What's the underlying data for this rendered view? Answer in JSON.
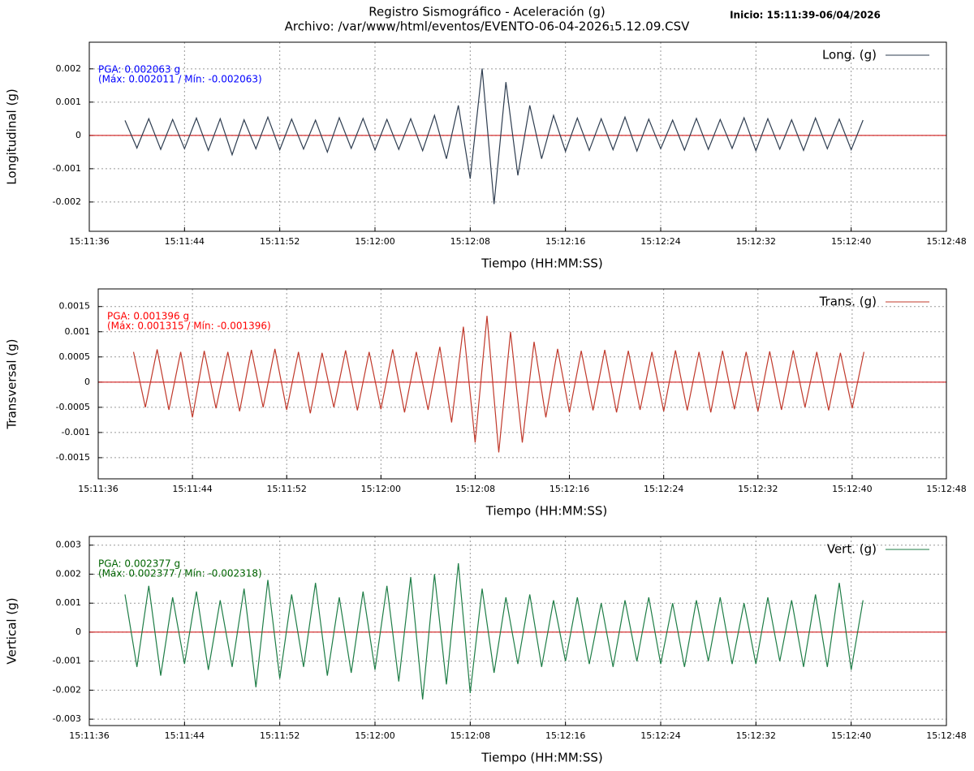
{
  "title": "Registro Sismográfico - Aceleración (g)",
  "subtitle": "Archivo: /var/www/html/eventos/EVENTO-06-04-2026₁5.12.09.CSV",
  "start_label": "Inicio: 15:11:39-06/04/2026",
  "chart_data": [
    {
      "type": "line",
      "ylabel": "Longitudinal (g)",
      "xlabel": "Tiempo (HH:MM:SS)",
      "pga_label": "PGA: 0.002063 g",
      "range_label": "(Máx: 0.002011 / Mín: -0.002063)",
      "annotation_color": "#0000ff",
      "grid": true,
      "baseline_color": "#cc0000",
      "xlim": [
        54696,
        54768
      ],
      "xticks": [
        {
          "value": 54696,
          "label": "15:11:36"
        },
        {
          "value": 54704,
          "label": "15:11:44"
        },
        {
          "value": 54712,
          "label": "15:11:52"
        },
        {
          "value": 54720,
          "label": "15:12:00"
        },
        {
          "value": 54728,
          "label": "15:12:08"
        },
        {
          "value": 54736,
          "label": "15:12:16"
        },
        {
          "value": 54744,
          "label": "15:12:24"
        },
        {
          "value": 54752,
          "label": "15:12:32"
        },
        {
          "value": 54760,
          "label": "15:12:40"
        },
        {
          "value": 54768,
          "label": "15:12:48"
        }
      ],
      "ylim": [
        -0.00288,
        0.0028
      ],
      "yticks": [
        -0.002,
        -0.001,
        0,
        0.001,
        0.002
      ],
      "x": [
        54699,
        54700,
        54701,
        54702,
        54703,
        54704,
        54705,
        54706,
        54707,
        54708,
        54709,
        54710,
        54711,
        54712,
        54713,
        54714,
        54715,
        54716,
        54717,
        54718,
        54719,
        54720,
        54721,
        54722,
        54723,
        54724,
        54725,
        54726,
        54727,
        54728,
        54729,
        54730,
        54731,
        54732,
        54733,
        54734,
        54735,
        54736,
        54737,
        54738,
        54739,
        54740,
        54741,
        54742,
        54743,
        54744,
        54745,
        54746,
        54747,
        54748,
        54749,
        54750,
        54751,
        54752,
        54753,
        54754,
        54755,
        54756,
        54757,
        54758,
        54759,
        54760,
        54761
      ],
      "series": [
        {
          "name": "Long. (g)",
          "color": "#2e3d50",
          "values": [
            0.00045,
            -0.00038,
            0.0005,
            -0.00042,
            0.00048,
            -0.0004,
            0.00052,
            -0.00045,
            0.0005,
            -0.00058,
            0.00047,
            -0.0004,
            0.00055,
            -0.00043,
            0.00049,
            -0.00041,
            0.00046,
            -0.0005,
            0.00053,
            -0.00039,
            0.00051,
            -0.00044,
            0.00048,
            -0.00042,
            0.0005,
            -0.00046,
            0.0006,
            -0.0007,
            0.0009,
            -0.0013,
            0.002011,
            -0.002063,
            0.0016,
            -0.0012,
            0.0009,
            -0.0007,
            0.0006,
            -0.00048,
            0.00052,
            -0.00045,
            0.0005,
            -0.00043,
            0.00055,
            -0.00047,
            0.00049,
            -0.0004,
            0.00046,
            -0.00044,
            0.00051,
            -0.00042,
            0.00048,
            -0.00039,
            0.00053,
            -0.00046,
            0.0005,
            -0.00041,
            0.00047,
            -0.00045,
            0.00052,
            -0.0004,
            0.00049,
            -0.00043,
            0.00046
          ]
        }
      ]
    },
    {
      "type": "line",
      "ylabel": "Transversal (g)",
      "xlabel": "Tiempo (HH:MM:SS)",
      "pga_label": "PGA: 0.001396 g",
      "range_label": "(Máx: 0.001315 / Mín: -0.001396)",
      "annotation_color": "#ff0000",
      "grid": true,
      "baseline_color": "#cc0000",
      "xlim": [
        54696,
        54768
      ],
      "xticks": [
        {
          "value": 54696,
          "label": "15:11:36"
        },
        {
          "value": 54704,
          "label": "15:11:44"
        },
        {
          "value": 54712,
          "label": "15:11:52"
        },
        {
          "value": 54720,
          "label": "15:12:00"
        },
        {
          "value": 54728,
          "label": "15:12:08"
        },
        {
          "value": 54736,
          "label": "15:12:16"
        },
        {
          "value": 54744,
          "label": "15:12:24"
        },
        {
          "value": 54752,
          "label": "15:12:32"
        },
        {
          "value": 54760,
          "label": "15:12:40"
        },
        {
          "value": 54768,
          "label": "15:12:48"
        }
      ],
      "ylim": [
        -0.00192,
        0.00185
      ],
      "yticks": [
        -0.0015,
        -0.001,
        -0.0005,
        0,
        0.0005,
        0.001,
        0.0015
      ],
      "x": [
        54699,
        54700,
        54701,
        54702,
        54703,
        54704,
        54705,
        54706,
        54707,
        54708,
        54709,
        54710,
        54711,
        54712,
        54713,
        54714,
        54715,
        54716,
        54717,
        54718,
        54719,
        54720,
        54721,
        54722,
        54723,
        54724,
        54725,
        54726,
        54727,
        54728,
        54729,
        54730,
        54731,
        54732,
        54733,
        54734,
        54735,
        54736,
        54737,
        54738,
        54739,
        54740,
        54741,
        54742,
        54743,
        54744,
        54745,
        54746,
        54747,
        54748,
        54749,
        54750,
        54751,
        54752,
        54753,
        54754,
        54755,
        54756,
        54757,
        54758,
        54759,
        54760,
        54761
      ],
      "series": [
        {
          "name": "Trans. (g)",
          "color": "#c0392b",
          "values": [
            0.0006,
            -0.0005,
            0.00065,
            -0.00055,
            0.0006,
            -0.0007,
            0.00062,
            -0.00052,
            0.0006,
            -0.00058,
            0.00064,
            -0.0005,
            0.00066,
            -0.00055,
            0.0006,
            -0.00062,
            0.00058,
            -0.0005,
            0.00063,
            -0.00056,
            0.0006,
            -0.00054,
            0.00065,
            -0.0006,
            0.0006,
            -0.00055,
            0.0007,
            -0.0008,
            0.0011,
            -0.0012,
            0.001315,
            -0.001396,
            0.001,
            -0.0012,
            0.0008,
            -0.0007,
            0.00066,
            -0.0006,
            0.00062,
            -0.00056,
            0.00064,
            -0.0006,
            0.00062,
            -0.00055,
            0.0006,
            -0.00058,
            0.00063,
            -0.00056,
            0.0006,
            -0.0006,
            0.00062,
            -0.00054,
            0.0006,
            -0.00058,
            0.00061,
            -0.00055,
            0.00063,
            -0.0005,
            0.0006,
            -0.00056,
            0.00058,
            -0.00052,
            0.0006
          ]
        }
      ]
    },
    {
      "type": "line",
      "ylabel": "Vertical (g)",
      "xlabel": "Tiempo (HH:MM:SS)",
      "pga_label": "PGA: 0.002377 g",
      "range_label": "(Máx: 0.002377 / Mín: -0.002318)",
      "annotation_color": "#006400",
      "grid": true,
      "baseline_color": "#cc0000",
      "xlim": [
        54696,
        54768
      ],
      "xticks": [
        {
          "value": 54696,
          "label": "15:11:36"
        },
        {
          "value": 54704,
          "label": "15:11:44"
        },
        {
          "value": 54712,
          "label": "15:11:52"
        },
        {
          "value": 54720,
          "label": "15:12:00"
        },
        {
          "value": 54728,
          "label": "15:12:08"
        },
        {
          "value": 54736,
          "label": "15:12:16"
        },
        {
          "value": 54744,
          "label": "15:12:24"
        },
        {
          "value": 54752,
          "label": "15:12:32"
        },
        {
          "value": 54760,
          "label": "15:12:40"
        },
        {
          "value": 54768,
          "label": "15:12:48"
        }
      ],
      "ylim": [
        -0.00322,
        0.0033
      ],
      "yticks": [
        -0.003,
        -0.002,
        -0.001,
        0,
        0.001,
        0.002,
        0.003
      ],
      "x": [
        54699,
        54700,
        54701,
        54702,
        54703,
        54704,
        54705,
        54706,
        54707,
        54708,
        54709,
        54710,
        54711,
        54712,
        54713,
        54714,
        54715,
        54716,
        54717,
        54718,
        54719,
        54720,
        54721,
        54722,
        54723,
        54724,
        54725,
        54726,
        54727,
        54728,
        54729,
        54730,
        54731,
        54732,
        54733,
        54734,
        54735,
        54736,
        54737,
        54738,
        54739,
        54740,
        54741,
        54742,
        54743,
        54744,
        54745,
        54746,
        54747,
        54748,
        54749,
        54750,
        54751,
        54752,
        54753,
        54754,
        54755,
        54756,
        54757,
        54758,
        54759,
        54760,
        54761
      ],
      "series": [
        {
          "name": "Vert. (g)",
          "color": "#1e7d46",
          "values": [
            0.0013,
            -0.0012,
            0.0016,
            -0.0015,
            0.0012,
            -0.0011,
            0.0014,
            -0.0013,
            0.0011,
            -0.0012,
            0.0015,
            -0.0019,
            0.0018,
            -0.0016,
            0.0013,
            -0.0012,
            0.0017,
            -0.0015,
            0.0012,
            -0.0014,
            0.0014,
            -0.0013,
            0.0016,
            -0.0017,
            0.0019,
            -0.002318,
            0.002,
            -0.0018,
            0.002377,
            -0.0021,
            0.0015,
            -0.0014,
            0.0012,
            -0.0011,
            0.0013,
            -0.0012,
            0.0011,
            -0.001,
            0.0012,
            -0.0011,
            0.001,
            -0.0012,
            0.0011,
            -0.001,
            0.0012,
            -0.0011,
            0.001,
            -0.0012,
            0.0011,
            -0.001,
            0.0012,
            -0.0011,
            0.001,
            -0.0011,
            0.0012,
            -0.001,
            0.0011,
            -0.0012,
            0.0013,
            -0.0012,
            0.0017,
            -0.0013,
            0.0011
          ]
        }
      ]
    }
  ]
}
